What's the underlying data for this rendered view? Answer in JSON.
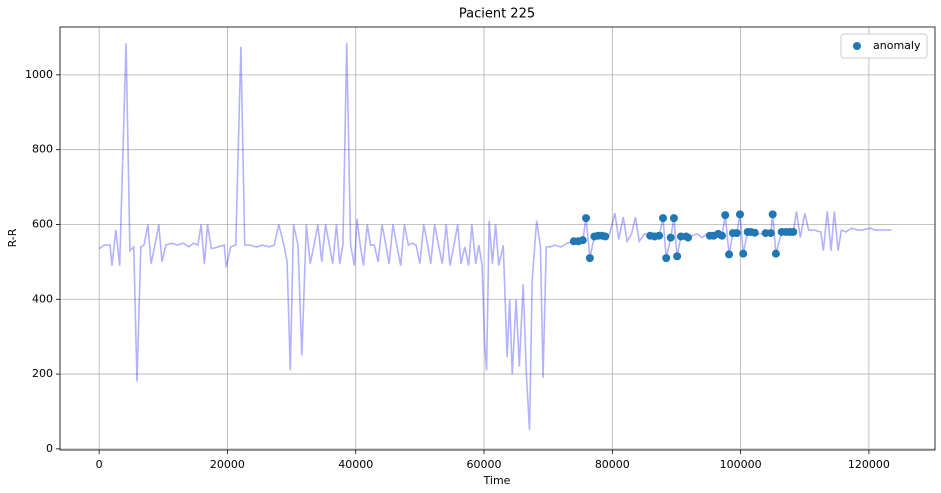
{
  "chart_data": {
    "type": "line",
    "title": "Pacient 225",
    "x_label": "Time",
    "y_label": "R-R",
    "line": {
      "color": "#0000ff",
      "opacity": 0.3,
      "x": [
        0,
        800,
        1700,
        2000,
        2600,
        3200,
        4200,
        4800,
        5400,
        5900,
        6500,
        7000,
        7600,
        8100,
        8700,
        9300,
        9800,
        10400,
        11300,
        12200,
        13100,
        14000,
        14700,
        15400,
        15900,
        16400,
        16900,
        17500,
        18500,
        19500,
        19800,
        20500,
        21300,
        22100,
        22700,
        23500,
        24500,
        25500,
        26500,
        27300,
        28000,
        28800,
        29300,
        29800,
        30300,
        31000,
        31600,
        32300,
        32900,
        33500,
        34100,
        34700,
        35300,
        35900,
        36400,
        37000,
        37500,
        38000,
        38600,
        39200,
        39800,
        40200,
        40700,
        41200,
        41800,
        42300,
        42900,
        43500,
        44100,
        44700,
        45200,
        45800,
        46400,
        47000,
        47600,
        48200,
        48800,
        49400,
        50000,
        50600,
        51200,
        51700,
        52300,
        52900,
        53500,
        54100,
        54700,
        55300,
        55900,
        56400,
        57000,
        57600,
        58100,
        58700,
        59200,
        59700,
        60100,
        60400,
        60800,
        61300,
        61800,
        62300,
        63000,
        63600,
        64000,
        64400,
        65000,
        65500,
        66100,
        66600,
        67100,
        67500,
        68200,
        68800,
        69200,
        69700,
        70300,
        71000,
        72000,
        73000,
        74000,
        74700,
        75400,
        75900,
        76500,
        77200,
        77800,
        78400,
        78900,
        79500,
        80400,
        81000,
        81700,
        82300,
        83000,
        83600,
        84200,
        85000,
        85900,
        86600,
        87300,
        87900,
        88400,
        89100,
        89600,
        90100,
        90700,
        91500,
        91800,
        92500,
        93200,
        94000,
        94700,
        95200,
        95800,
        96500,
        97100,
        97600,
        98200,
        98800,
        99400,
        99900,
        100400,
        101100,
        101600,
        102200,
        102900,
        103900,
        104700,
        105000,
        105500,
        106400,
        107100,
        107700,
        108200,
        108700,
        109300,
        110000,
        110600,
        111500,
        112500,
        112900,
        113500,
        114100,
        114600,
        115200,
        115700,
        116400,
        117300,
        118300,
        119000,
        120200,
        121000,
        122000,
        123500
      ],
      "values": [
        535,
        545,
        545,
        490,
        585,
        490,
        1085,
        530,
        540,
        180,
        540,
        545,
        600,
        495,
        545,
        600,
        500,
        545,
        550,
        545,
        550,
        540,
        550,
        545,
        600,
        495,
        600,
        535,
        540,
        545,
        485,
        540,
        545,
        1075,
        545,
        545,
        540,
        545,
        540,
        545,
        600,
        545,
        500,
        210,
        600,
        545,
        250,
        600,
        495,
        545,
        600,
        500,
        600,
        545,
        495,
        600,
        495,
        545,
        1085,
        545,
        490,
        615,
        545,
        490,
        600,
        545,
        545,
        500,
        600,
        545,
        495,
        600,
        545,
        490,
        600,
        545,
        550,
        545,
        495,
        600,
        545,
        495,
        600,
        545,
        495,
        600,
        490,
        545,
        600,
        495,
        540,
        490,
        600,
        495,
        545,
        490,
        280,
        210,
        610,
        495,
        600,
        490,
        545,
        245,
        400,
        200,
        400,
        220,
        440,
        200,
        50,
        450,
        610,
        540,
        190,
        540,
        540,
        545,
        540,
        550,
        555,
        555,
        558,
        617,
        510,
        568,
        570,
        570,
        568,
        570,
        630,
        560,
        620,
        555,
        575,
        620,
        555,
        575,
        570,
        568,
        570,
        617,
        510,
        565,
        617,
        515,
        568,
        568,
        565,
        570,
        575,
        565,
        575,
        570,
        570,
        575,
        570,
        625,
        520,
        577,
        577,
        627,
        522,
        580,
        580,
        578,
        575,
        577,
        577,
        627,
        522,
        580,
        580,
        580,
        580,
        635,
        565,
        630,
        585,
        585,
        580,
        530,
        635,
        530,
        635,
        530,
        585,
        580,
        590,
        585,
        585,
        590,
        585,
        585,
        585
      ]
    },
    "scatter": {
      "name": "anomaly",
      "color": "#1f77b4",
      "x": [
        74000,
        74700,
        75400,
        75900,
        76500,
        77200,
        77800,
        78400,
        78900,
        85900,
        86600,
        87300,
        87900,
        88400,
        89100,
        89600,
        90100,
        90700,
        91500,
        91800,
        95200,
        95800,
        96500,
        97100,
        97600,
        98200,
        98800,
        99400,
        99900,
        100400,
        101100,
        101600,
        102200,
        103900,
        104700,
        105000,
        105500,
        106400,
        107100,
        107700,
        108200
      ],
      "values": [
        555,
        555,
        558,
        617,
        510,
        568,
        570,
        570,
        568,
        570,
        568,
        570,
        617,
        510,
        565,
        617,
        515,
        568,
        568,
        565,
        570,
        570,
        575,
        570,
        625,
        520,
        577,
        577,
        627,
        522,
        580,
        580,
        578,
        577,
        577,
        627,
        522,
        580,
        580,
        580,
        580
      ]
    },
    "xlim": [
      -6100,
      130300
    ],
    "ylim": [
      -3,
      1128
    ],
    "xticks": [
      0,
      20000,
      40000,
      60000,
      80000,
      100000,
      120000
    ],
    "yticks": [
      0,
      200,
      400,
      600,
      800,
      1000
    ],
    "grid": true,
    "legend": "upper right"
  }
}
